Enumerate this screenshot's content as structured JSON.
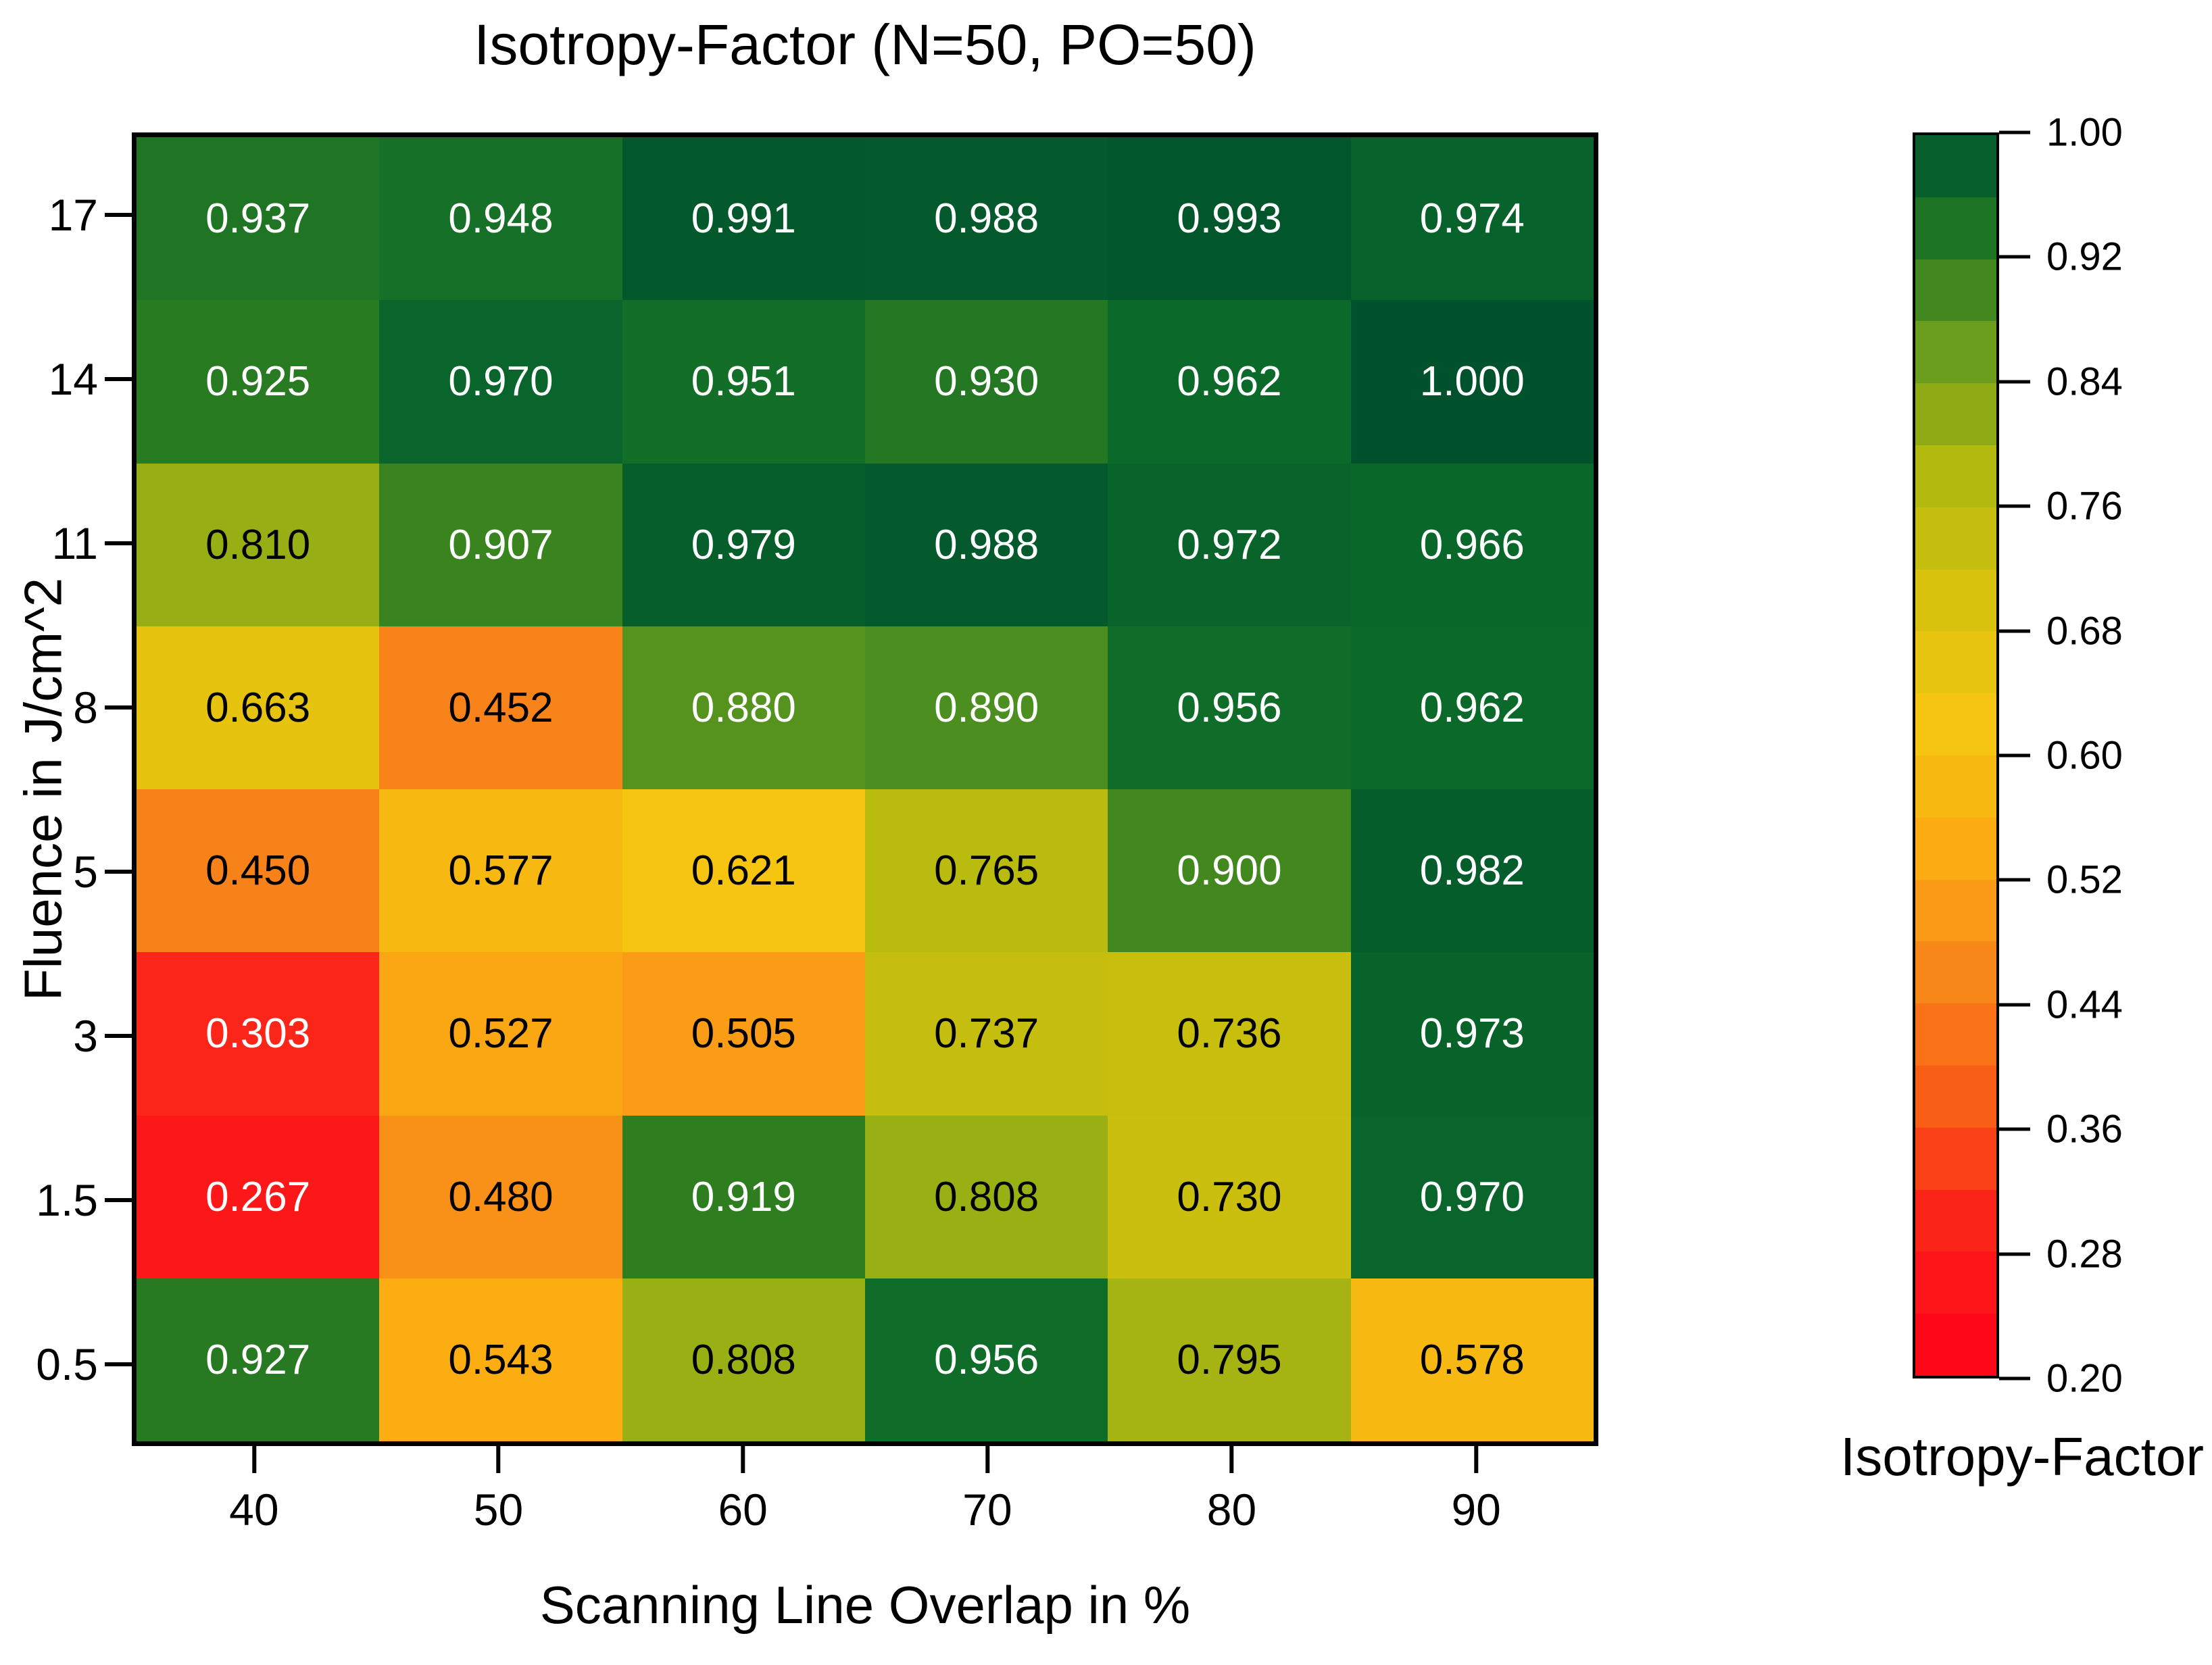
{
  "title": "Isotropy-Factor (N=50, PO=50)",
  "chart_data": {
    "type": "heatmap",
    "title": "Isotropy-Factor (N=50, PO=50)",
    "xlabel": "Scanning Line Overlap in %",
    "ylabel": "Fluence in J/cm^2",
    "x_categories": [
      "40",
      "50",
      "60",
      "70",
      "80",
      "90"
    ],
    "y_categories": [
      "17",
      "14",
      "11",
      "8",
      "5",
      "3",
      "1.5",
      "0.5"
    ],
    "values": [
      [
        0.937,
        0.948,
        0.991,
        0.988,
        0.993,
        0.974
      ],
      [
        0.925,
        0.97,
        0.951,
        0.93,
        0.962,
        1.0
      ],
      [
        0.81,
        0.907,
        0.979,
        0.988,
        0.972,
        0.966
      ],
      [
        0.663,
        0.452,
        0.88,
        0.89,
        0.956,
        0.962
      ],
      [
        0.45,
        0.577,
        0.621,
        0.765,
        0.9,
        0.982
      ],
      [
        0.303,
        0.527,
        0.505,
        0.737,
        0.736,
        0.973
      ],
      [
        0.267,
        0.48,
        0.919,
        0.808,
        0.73,
        0.97
      ],
      [
        0.927,
        0.543,
        0.808,
        0.956,
        0.795,
        0.578
      ]
    ],
    "value_decimals": 3,
    "grid": false,
    "colorbar": {
      "label": "Isotropy-Factor",
      "tick_labels": [
        "1.00",
        "0.92",
        "0.84",
        "0.76",
        "0.68",
        "0.60",
        "0.52",
        "0.44",
        "0.36",
        "0.28",
        "0.20"
      ],
      "min": 0.2,
      "max": 1.0,
      "steps": 20
    },
    "colormap_stops": [
      [
        0.2,
        "#ff0019"
      ],
      [
        0.3,
        "#fb2419"
      ],
      [
        0.38,
        "#f95e17"
      ],
      [
        0.46,
        "#f8871a"
      ],
      [
        0.54,
        "#fbac12"
      ],
      [
        0.62,
        "#f5c511"
      ],
      [
        0.7,
        "#d8c20d"
      ],
      [
        0.78,
        "#b2b90f"
      ],
      [
        0.86,
        "#6b9e1d"
      ],
      [
        0.92,
        "#2d7d20"
      ],
      [
        0.96,
        "#0c6b2a"
      ],
      [
        1.0,
        "#00522d"
      ]
    ],
    "label_color_white": "#ffffff",
    "label_color_black": "#000000",
    "text_white_below": 0.35,
    "text_white_above": 0.85
  }
}
